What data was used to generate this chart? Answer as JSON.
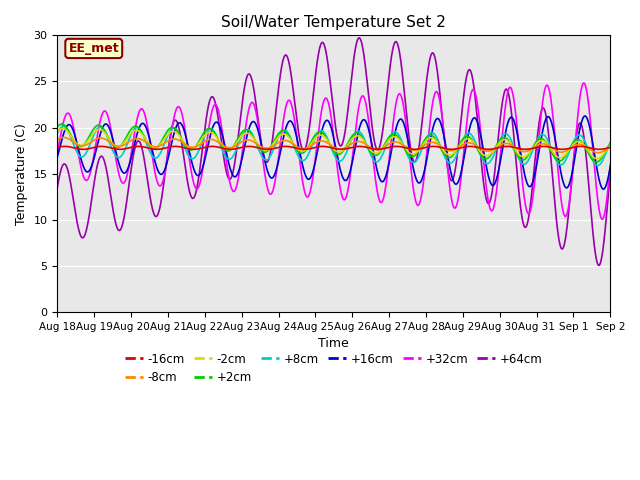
{
  "title": "Soil/Water Temperature Set 2",
  "xlabel": "Time",
  "ylabel": "Temperature (C)",
  "ylim": [
    0,
    30
  ],
  "xlim": [
    0,
    15
  ],
  "background_color": "#e8e8e8",
  "annotation_text": "EE_met",
  "annotation_bg": "#ffffcc",
  "annotation_border": "#8b0000",
  "x_tick_labels": [
    "Aug 18",
    "Aug 19",
    "Aug 20",
    "Aug 21",
    "Aug 22",
    "Aug 23",
    "Aug 24",
    "Aug 25",
    "Aug 26",
    "Aug 27",
    "Aug 28",
    "Aug 29",
    "Aug 30",
    "Aug 31",
    "Sep 1",
    "Sep 2"
  ],
  "x_tick_positions": [
    0,
    1,
    2,
    3,
    4,
    5,
    6,
    7,
    8,
    9,
    10,
    11,
    12,
    13,
    14,
    15
  ],
  "y_tick_positions": [
    0,
    5,
    10,
    15,
    20,
    25,
    30
  ],
  "legend_entries": [
    "-16cm",
    "-8cm",
    "-2cm",
    "+2cm",
    "+8cm",
    "+16cm",
    "+32cm",
    "+64cm"
  ],
  "legend_colors": [
    "#dd0000",
    "#ff8800",
    "#dddd00",
    "#00cc00",
    "#00cccc",
    "#0000cc",
    "#ff00ff",
    "#9900aa"
  ],
  "days": 15,
  "base_temp": 18.0,
  "n_points": 2000
}
